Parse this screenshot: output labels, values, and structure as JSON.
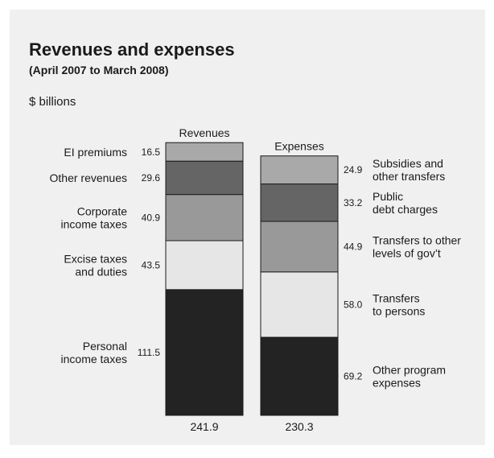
{
  "title": "Revenues and expenses",
  "subtitle": "(April 2007 to March 2008)",
  "unit_label": "$ billions",
  "chart_data": {
    "type": "bar",
    "stacked": true,
    "title": "Revenues and expenses",
    "subtitle": "(April 2007 to March 2008)",
    "ylabel": "$ billions",
    "columns": [
      {
        "name": "Revenues",
        "total": "241.9",
        "segments": [
          {
            "label": [
              "EI premiums"
            ],
            "value": 16.5,
            "display": "16.5",
            "color": "#a9a9a9"
          },
          {
            "label": [
              "Other revenues"
            ],
            "value": 29.6,
            "display": "29.6",
            "color": "#656565"
          },
          {
            "label": [
              "Corporate",
              "income taxes"
            ],
            "value": 40.9,
            "display": "40.9",
            "color": "#999999"
          },
          {
            "label": [
              "Excise taxes",
              "and duties"
            ],
            "value": 43.5,
            "display": "43.5",
            "color": "#e6e6e6"
          },
          {
            "label": [
              "Personal",
              "income taxes"
            ],
            "value": 111.5,
            "display": "111.5",
            "color": "#232323"
          }
        ]
      },
      {
        "name": "Expenses",
        "total": "230.3",
        "segments": [
          {
            "label": [
              "Subsidies and",
              "other transfers"
            ],
            "value": 24.9,
            "display": "24.9",
            "color": "#a9a9a9"
          },
          {
            "label": [
              "Public",
              "debt charges"
            ],
            "value": 33.2,
            "display": "33.2",
            "color": "#656565"
          },
          {
            "label": [
              "Transfers to other",
              "levels of gov’t"
            ],
            "value": 44.9,
            "display": "44.9",
            "color": "#999999"
          },
          {
            "label": [
              "Transfers",
              "to persons"
            ],
            "value": 58.0,
            "display": "58.0",
            "color": "#e6e6e6"
          },
          {
            "label": [
              "Other program",
              "expenses"
            ],
            "value": 69.2,
            "display": "69.2",
            "color": "#232323"
          }
        ]
      }
    ]
  }
}
